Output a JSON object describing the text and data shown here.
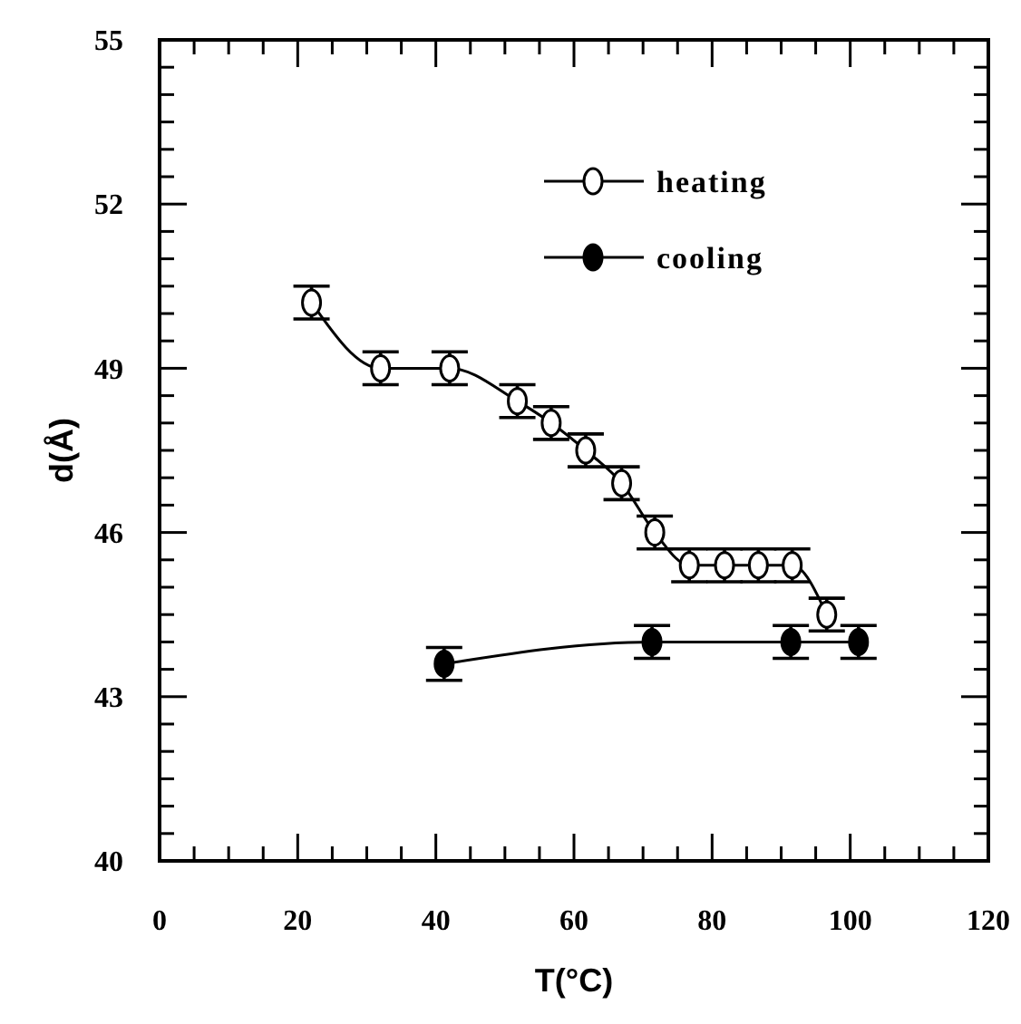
{
  "chart_data": {
    "type": "line",
    "xlabel": "T(°C)",
    "ylabel": "d(Å)",
    "xlim": [
      0,
      120
    ],
    "ylim": [
      40,
      55
    ],
    "xticks": [
      0,
      {
        "value": 5,
        "label": null
      },
      {
        "value": 10,
        "label": null
      },
      {
        "value": 15,
        "label": null
      },
      20,
      {
        "value": 25,
        "label": null
      },
      {
        "value": 30,
        "label": null
      },
      {
        "value": 35,
        "label": null
      },
      40,
      {
        "value": 45,
        "label": null
      },
      {
        "value": 50,
        "label": null
      },
      {
        "value": 55,
        "label": null
      },
      60,
      {
        "value": 65,
        "label": null
      },
      {
        "value": 70,
        "label": null
      },
      {
        "value": 75,
        "label": null
      },
      80,
      {
        "value": 85,
        "label": null
      },
      {
        "value": 90,
        "label": null
      },
      {
        "value": 95,
        "label": null
      },
      100,
      {
        "value": 105,
        "label": null
      },
      {
        "value": 110,
        "label": null
      },
      {
        "value": 115,
        "label": null
      },
      120
    ],
    "yticks": [
      40,
      {
        "value": 40.5,
        "label": null
      },
      {
        "value": 41,
        "label": null
      },
      {
        "value": 41.5,
        "label": null
      },
      {
        "value": 42,
        "label": null
      },
      {
        "value": 42.5,
        "label": null
      },
      43,
      {
        "value": 43.5,
        "label": null
      },
      {
        "value": 44,
        "label": null
      },
      {
        "value": 44.5,
        "label": null
      },
      {
        "value": 45,
        "label": null
      },
      {
        "value": 45.5,
        "label": null
      },
      46,
      {
        "value": 46.5,
        "label": null
      },
      {
        "value": 47,
        "label": null
      },
      {
        "value": 47.5,
        "label": null
      },
      {
        "value": 48,
        "label": null
      },
      {
        "value": 48.5,
        "label": null
      },
      49,
      {
        "value": 49.5,
        "label": null
      },
      {
        "value": 50,
        "label": null
      },
      {
        "value": 50.5,
        "label": null
      },
      {
        "value": 51,
        "label": null
      },
      {
        "value": 51.5,
        "label": null
      },
      52,
      {
        "value": 52.5,
        "label": null
      },
      {
        "value": 53,
        "label": null
      },
      {
        "value": 53.5,
        "label": null
      },
      {
        "value": 54,
        "label": null
      },
      {
        "value": 54.5,
        "label": null
      },
      55
    ],
    "grid": false,
    "legend": "top right",
    "marker": "circle",
    "line_style": "solid",
    "series": [
      {
        "name": "heating",
        "color": "#000000",
        "x": [
          22,
          32,
          42,
          51.8,
          56.7,
          61.7,
          66.9,
          71.7,
          76.7,
          81.8,
          86.7,
          91.6,
          96.6
        ],
        "values": [
          50.2,
          49.0,
          49.0,
          48.4,
          48.0,
          47.5,
          46.9,
          46.0,
          45.4,
          45.4,
          45.4,
          45.4,
          44.5
        ],
        "errors": [
          0.3,
          0.3,
          0.3,
          0.3,
          0.3,
          0.3,
          0.3,
          0.3,
          0.3,
          0.3,
          0.3,
          0.3,
          0.3
        ]
      },
      {
        "name": "cooling",
        "color": "#000000",
        "x": [
          41.2,
          71.3,
          91.4,
          101.2
        ],
        "values": [
          43.6,
          44.0,
          44.0,
          44.0
        ],
        "errors": [
          0.3,
          0.3,
          0.3,
          0.3
        ]
      }
    ]
  }
}
